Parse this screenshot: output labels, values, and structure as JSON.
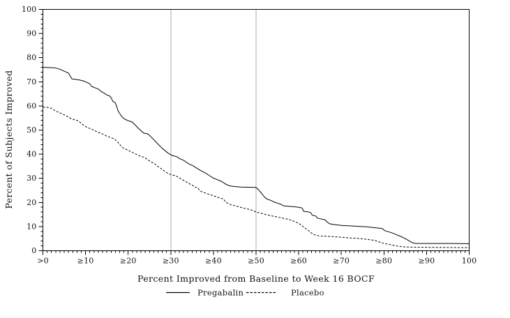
{
  "chart_data": {
    "type": "line",
    "title": "",
    "xlabel": "Percent Improved from Baseline to Week 16 BOCF",
    "ylabel": "Percent of Subjects Improved",
    "xlim": [
      0,
      100
    ],
    "ylim": [
      0,
      100
    ],
    "grid": "off",
    "x_axis": {
      "tick_values": [
        0,
        10,
        20,
        30,
        40,
        50,
        60,
        70,
        80,
        90,
        100
      ],
      "tick_labels": [
        ">0",
        "≥10",
        "≥20",
        "≥30",
        "≥40",
        "≥50",
        "≥60",
        "≥70",
        "≥80",
        "≥90",
        "100"
      ],
      "minor_tick_step": 1
    },
    "y_axis": {
      "tick_values": [
        0,
        10,
        20,
        30,
        40,
        50,
        60,
        70,
        80,
        90,
        100
      ],
      "tick_labels": [
        "0",
        "10",
        "20",
        "30",
        "40",
        "50",
        "60",
        "70",
        "80",
        "90",
        "100"
      ],
      "minor_tick_step": 2
    },
    "reference_lines_x": [
      30,
      50
    ],
    "legend": {
      "position": "bottom",
      "items": [
        {
          "label": "Pregabalin",
          "style": "solid"
        },
        {
          "label": "Placebo",
          "style": "dashed"
        }
      ]
    },
    "colors": {
      "curve": "#000000",
      "axis": "#000000",
      "reference_line": "#ababab",
      "background": "#ffffff"
    },
    "series": [
      {
        "name": "Pregabalin",
        "style": "solid",
        "points": [
          [
            0,
            76
          ],
          [
            2.8,
            75.8
          ],
          [
            4,
            75.2
          ],
          [
            5,
            74.4
          ],
          [
            6,
            73.6
          ],
          [
            6.4,
            72.4
          ],
          [
            6.8,
            71.2
          ],
          [
            7.6,
            71
          ],
          [
            8.4,
            70.8
          ],
          [
            9.4,
            70.4
          ],
          [
            10,
            70
          ],
          [
            11,
            69.2
          ],
          [
            11.4,
            68.1
          ],
          [
            12.4,
            67.4
          ],
          [
            13,
            67
          ],
          [
            13.6,
            66.1
          ],
          [
            14.2,
            65.5
          ],
          [
            15,
            64.5
          ],
          [
            15.6,
            64.2
          ],
          [
            16,
            63.4
          ],
          [
            16.4,
            61.9
          ],
          [
            17,
            61.3
          ],
          [
            17.3,
            59.8
          ],
          [
            17.6,
            58.1
          ],
          [
            18,
            56.9
          ],
          [
            18.5,
            55.6
          ],
          [
            19.2,
            54.5
          ],
          [
            20,
            53.9
          ],
          [
            21,
            53.3
          ],
          [
            21.7,
            52
          ],
          [
            22.4,
            50.7
          ],
          [
            23,
            49.8
          ],
          [
            23.6,
            48.8
          ],
          [
            24.6,
            48.4
          ],
          [
            25.2,
            47.5
          ],
          [
            26,
            46
          ],
          [
            27,
            44.2
          ],
          [
            28,
            42.4
          ],
          [
            28.7,
            41.4
          ],
          [
            29.4,
            40.4
          ],
          [
            30,
            39.8
          ],
          [
            30.6,
            39.3
          ],
          [
            31.4,
            39
          ],
          [
            32,
            38.2
          ],
          [
            33,
            37.5
          ],
          [
            33.6,
            36.7
          ],
          [
            34.4,
            35.8
          ],
          [
            35.2,
            35.2
          ],
          [
            36,
            34.3
          ],
          [
            37,
            33.2
          ],
          [
            38,
            32.3
          ],
          [
            39,
            31.2
          ],
          [
            40,
            30.1
          ],
          [
            41,
            29.4
          ],
          [
            42,
            28.6
          ],
          [
            42.6,
            27.9
          ],
          [
            43.2,
            27.3
          ],
          [
            44,
            26.8
          ],
          [
            45,
            26.6
          ],
          [
            46.5,
            26.4
          ],
          [
            48,
            26.3
          ],
          [
            50,
            26.2
          ],
          [
            50.6,
            25.2
          ],
          [
            51.2,
            24
          ],
          [
            52,
            22.2
          ],
          [
            52.6,
            21.4
          ],
          [
            53.4,
            20.9
          ],
          [
            54.2,
            20.2
          ],
          [
            55,
            19.7
          ],
          [
            56,
            19.1
          ],
          [
            56.4,
            18.6
          ],
          [
            57.5,
            18.4
          ],
          [
            59,
            18.2
          ],
          [
            60,
            18
          ],
          [
            60.8,
            17.7
          ],
          [
            61.2,
            16.3
          ],
          [
            62.2,
            16.1
          ],
          [
            62.8,
            15.8
          ],
          [
            63.2,
            14.7
          ],
          [
            64,
            14.4
          ],
          [
            64.4,
            13.5
          ],
          [
            65.4,
            13.1
          ],
          [
            66.2,
            12.8
          ],
          [
            66.6,
            12
          ],
          [
            67.2,
            11.2
          ],
          [
            68,
            10.9
          ],
          [
            69,
            10.7
          ],
          [
            70,
            10.5
          ],
          [
            72,
            10.3
          ],
          [
            74,
            10.1
          ],
          [
            76,
            9.9
          ],
          [
            78,
            9.5
          ],
          [
            79.6,
            9.2
          ],
          [
            80.2,
            8.3
          ],
          [
            81,
            7.9
          ],
          [
            82,
            7.3
          ],
          [
            83,
            6.6
          ],
          [
            84,
            5.9
          ],
          [
            85,
            5
          ],
          [
            86,
            4
          ],
          [
            86.8,
            3.2
          ],
          [
            87.4,
            3
          ],
          [
            89,
            3
          ],
          [
            92,
            3
          ],
          [
            96,
            3
          ],
          [
            100,
            2.9
          ]
        ]
      },
      {
        "name": "Placebo",
        "style": "dashed",
        "points": [
          [
            0,
            59.6
          ],
          [
            1.6,
            59.3
          ],
          [
            2.2,
            58.8
          ],
          [
            3,
            57.9
          ],
          [
            4,
            57.1
          ],
          [
            5,
            56.3
          ],
          [
            6,
            55.4
          ],
          [
            6.6,
            54.7
          ],
          [
            7.6,
            54.2
          ],
          [
            8.2,
            53.9
          ],
          [
            8.8,
            53.1
          ],
          [
            9.4,
            52.2
          ],
          [
            10,
            51.5
          ],
          [
            10.6,
            50.9
          ],
          [
            11.4,
            50.4
          ],
          [
            12.2,
            49.7
          ],
          [
            12.8,
            49.2
          ],
          [
            13.6,
            48.6
          ],
          [
            14.4,
            48.1
          ],
          [
            15,
            47.4
          ],
          [
            16,
            46.9
          ],
          [
            16.6,
            46.4
          ],
          [
            17,
            46
          ],
          [
            17.6,
            44.9
          ],
          [
            18.2,
            43.6
          ],
          [
            18.8,
            42.6
          ],
          [
            19.6,
            41.9
          ],
          [
            20.6,
            41.1
          ],
          [
            21.4,
            40.4
          ],
          [
            22.2,
            39.7
          ],
          [
            23,
            39.1
          ],
          [
            23.8,
            38.7
          ],
          [
            24.6,
            37.7
          ],
          [
            25.4,
            36.8
          ],
          [
            26.2,
            36
          ],
          [
            27,
            34.9
          ],
          [
            28,
            33.7
          ],
          [
            28.8,
            32.6
          ],
          [
            29.6,
            31.8
          ],
          [
            30.4,
            31.4
          ],
          [
            31.2,
            31
          ],
          [
            31.8,
            30.4
          ],
          [
            32.6,
            29.6
          ],
          [
            33.4,
            28.7
          ],
          [
            34.2,
            27.9
          ],
          [
            35,
            27.2
          ],
          [
            35.8,
            26.3
          ],
          [
            36.4,
            26
          ],
          [
            36.8,
            24.8
          ],
          [
            37.6,
            24.2
          ],
          [
            38.6,
            23.6
          ],
          [
            39.6,
            23
          ],
          [
            40.6,
            22.4
          ],
          [
            41.6,
            21.8
          ],
          [
            42.4,
            21.4
          ],
          [
            42.8,
            20.3
          ],
          [
            43.4,
            19.6
          ],
          [
            44.2,
            19
          ],
          [
            45.2,
            18.6
          ],
          [
            46.2,
            18.1
          ],
          [
            47.2,
            17.6
          ],
          [
            48.2,
            17.2
          ],
          [
            49.2,
            16.7
          ],
          [
            50,
            16
          ],
          [
            51,
            15.6
          ],
          [
            52,
            15.1
          ],
          [
            53,
            14.7
          ],
          [
            54,
            14.3
          ],
          [
            55,
            14
          ],
          [
            56,
            13.6
          ],
          [
            57,
            13.2
          ],
          [
            58,
            12.8
          ],
          [
            58.6,
            12.4
          ],
          [
            59.4,
            11.8
          ],
          [
            60,
            11.4
          ],
          [
            60.6,
            10.6
          ],
          [
            61.2,
            9.8
          ],
          [
            61.8,
            9
          ],
          [
            62.4,
            8.2
          ],
          [
            63,
            7.3
          ],
          [
            63.6,
            6.7
          ],
          [
            64.2,
            6.3
          ],
          [
            65.2,
            6.1
          ],
          [
            66.5,
            6
          ],
          [
            68,
            5.8
          ],
          [
            70,
            5.6
          ],
          [
            72,
            5.3
          ],
          [
            74,
            5.1
          ],
          [
            75.5,
            4.8
          ],
          [
            77,
            4.5
          ],
          [
            78,
            4.2
          ],
          [
            78.6,
            3.8
          ],
          [
            79.6,
            3.2
          ],
          [
            80.4,
            2.9
          ],
          [
            81.5,
            2.5
          ],
          [
            82.5,
            2.1
          ],
          [
            83.5,
            1.8
          ],
          [
            84.5,
            1.6
          ],
          [
            86,
            1.5
          ],
          [
            88,
            1.45
          ],
          [
            92,
            1.35
          ],
          [
            96,
            1.3
          ],
          [
            100,
            1.25
          ]
        ]
      }
    ]
  }
}
